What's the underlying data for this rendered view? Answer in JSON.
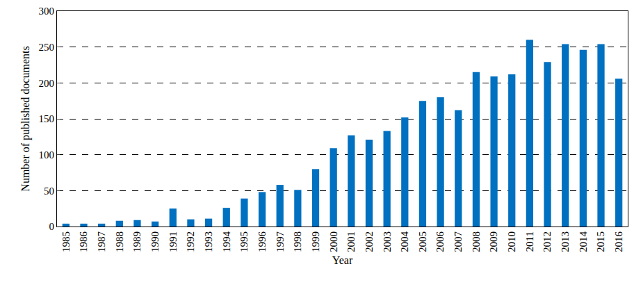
{
  "chart_data": {
    "type": "bar",
    "x_label": "Year",
    "y_label": "Number of published documents",
    "categories": [
      "1985",
      "1986",
      "1987",
      "1988",
      "1989",
      "1990",
      "1991",
      "1992",
      "1993",
      "1994",
      "1995",
      "1996",
      "1997",
      "1998",
      "1999",
      "2000",
      "2001",
      "2002",
      "2003",
      "2004",
      "2005",
      "2006",
      "2007",
      "2008",
      "2009",
      "2010",
      "2011",
      "2012",
      "2013",
      "2014",
      "2015",
      "2016"
    ],
    "values": [
      4,
      4,
      4,
      8,
      9,
      7,
      25,
      10,
      11,
      26,
      39,
      48,
      58,
      51,
      80,
      109,
      127,
      121,
      133,
      152,
      175,
      180,
      162,
      215,
      209,
      212,
      260,
      229,
      254,
      246,
      254,
      206
    ],
    "color": "#0070c0",
    "ylim": [
      0,
      300
    ],
    "yticks": [
      0,
      50,
      100,
      150,
      200,
      250,
      300
    ],
    "grid": true
  }
}
